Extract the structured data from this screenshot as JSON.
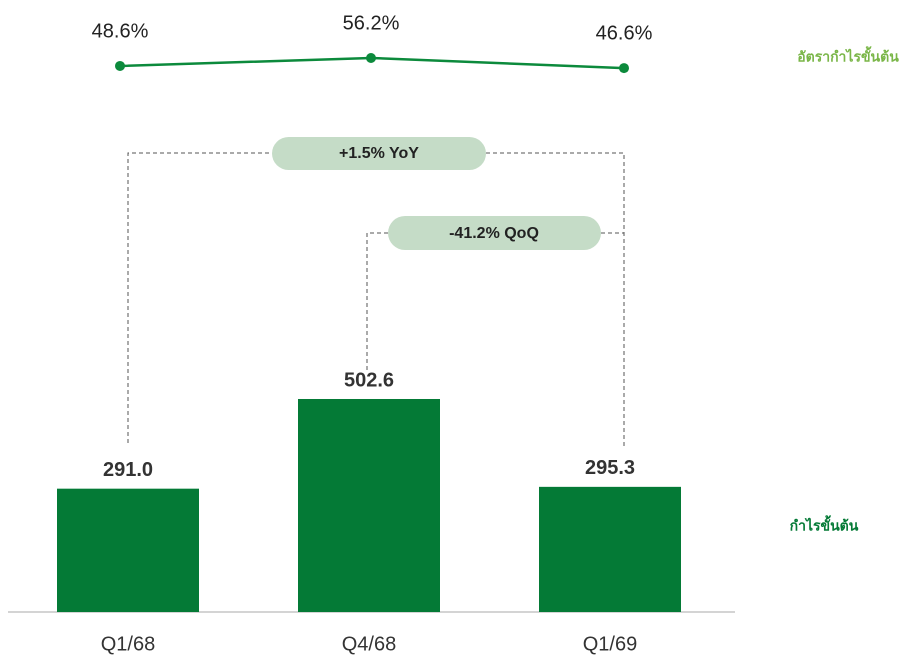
{
  "chart_data": {
    "type": "bar",
    "categories": [
      "Q1/68",
      "Q4/68",
      "Q1/69"
    ],
    "series": [
      {
        "name": "กำไรขั้นต้น",
        "type": "bar",
        "color": "#047a36",
        "values": [
          291.0,
          502.6,
          295.3
        ],
        "value_labels": [
          "291.0",
          "502.6",
          "295.3"
        ]
      },
      {
        "name": "อัตรากำไรขั้นต้น",
        "type": "line",
        "axis": "y2",
        "color": "#0c8a3c",
        "legend_color": "#7ab648",
        "values": [
          48.6,
          56.2,
          46.6
        ],
        "value_labels": [
          "48.6%",
          "56.2%",
          "46.6%"
        ]
      }
    ],
    "annotations": [
      "+1.5% YoY",
      "-41.2% QoQ"
    ]
  }
}
